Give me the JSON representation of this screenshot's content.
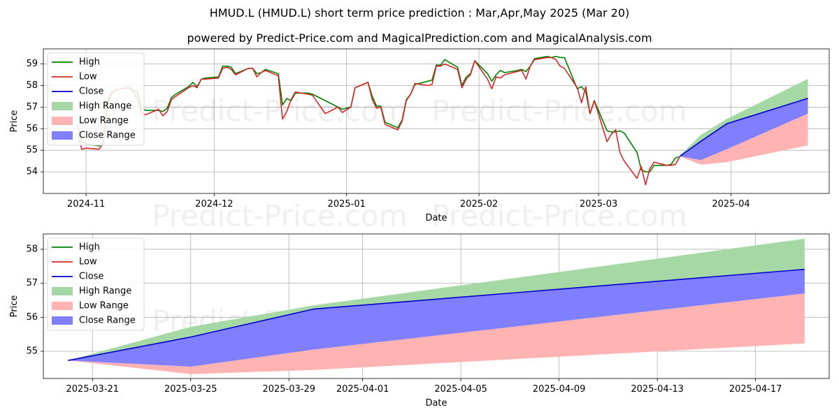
{
  "title": "HMUD.L (HMUD.L) short term price prediction : Mar,Apr,May 2025 (Mar 20)",
  "subtitle": "powered by Predict-Price.com and MagicalPrediction.com and MagicalAnalysis.com",
  "watermark": "Predict-Price.com",
  "colors": {
    "high": "#008000",
    "low": "#d62728",
    "close": "#0000cc",
    "high_range": "#a6d8a6",
    "low_range": "#ffb3b3",
    "close_range": "#7f7fff"
  },
  "legend": [
    "High",
    "Low",
    "Close",
    "High Range",
    "Low Range",
    "Close Range"
  ],
  "chart_data": [
    {
      "type": "line",
      "xlabel": "Date",
      "ylabel": "Price",
      "xlim": [
        "2024-10-22",
        "2025-04-24"
      ],
      "ylim": [
        53.0,
        59.7
      ],
      "yticks": [
        54,
        55,
        56,
        57,
        58,
        59
      ],
      "xticks": [
        {
          "date": "2024-11-01",
          "label": "2024-11"
        },
        {
          "date": "2024-12-01",
          "label": "2024-12"
        },
        {
          "date": "2025-01-01",
          "label": "2025-01"
        },
        {
          "date": "2025-02-01",
          "label": "2025-02"
        },
        {
          "date": "2025-03-01",
          "label": "2025-03"
        },
        {
          "date": "2025-04-01",
          "label": "2025-04"
        }
      ],
      "grid": true,
      "legend_position": "upper-left",
      "series": [
        {
          "name": "High",
          "x": [
            "2024-10-30",
            "2024-10-31",
            "2024-11-01",
            "2024-11-04",
            "2024-11-05",
            "2024-11-06",
            "2024-11-07",
            "2024-11-08",
            "2024-11-11",
            "2024-11-12",
            "2024-11-13",
            "2024-11-14",
            "2024-11-15",
            "2024-11-18",
            "2024-11-19",
            "2024-11-20",
            "2024-11-21",
            "2024-11-22",
            "2024-11-25",
            "2024-11-26",
            "2024-11-27",
            "2024-11-28",
            "2024-11-29",
            "2024-12-02",
            "2024-12-03",
            "2024-12-04",
            "2024-12-05",
            "2024-12-06",
            "2024-12-09",
            "2024-12-10",
            "2024-12-11",
            "2024-12-12",
            "2024-12-13",
            "2024-12-16",
            "2024-12-17",
            "2024-12-18",
            "2024-12-19",
            "2024-12-20",
            "2024-12-23",
            "2024-12-24",
            "2024-12-27",
            "2024-12-30",
            "2024-12-31",
            "2025-01-02",
            "2025-01-03",
            "2025-01-06",
            "2025-01-07",
            "2025-01-08",
            "2025-01-09",
            "2025-01-10",
            "2025-01-13",
            "2025-01-14",
            "2025-01-15",
            "2025-01-16",
            "2025-01-17",
            "2025-01-20",
            "2025-01-21",
            "2025-01-22",
            "2025-01-23",
            "2025-01-24",
            "2025-01-27",
            "2025-01-28",
            "2025-01-29",
            "2025-01-30",
            "2025-01-31",
            "2025-02-03",
            "2025-02-04",
            "2025-02-05",
            "2025-02-06",
            "2025-02-07",
            "2025-02-10",
            "2025-02-11",
            "2025-02-12",
            "2025-02-13",
            "2025-02-14",
            "2025-02-17",
            "2025-02-18",
            "2025-02-19",
            "2025-02-20",
            "2025-02-21",
            "2025-02-24",
            "2025-02-25",
            "2025-02-26",
            "2025-02-27",
            "2025-02-28",
            "2025-03-03",
            "2025-03-04",
            "2025-03-05",
            "2025-03-06",
            "2025-03-07",
            "2025-03-10",
            "2025-03-11",
            "2025-03-12",
            "2025-03-13",
            "2025-03-14",
            "2025-03-17",
            "2025-03-18",
            "2025-03-19",
            "2025-03-20"
          ],
          "values": [
            56.2,
            55.4,
            55.3,
            55.2,
            55.3,
            57.1,
            57.7,
            57.8,
            57.9,
            57.8,
            57.7,
            56.95,
            56.85,
            56.85,
            56.8,
            56.95,
            57.45,
            57.6,
            57.95,
            58.15,
            57.95,
            58.3,
            58.35,
            58.4,
            58.9,
            58.9,
            58.85,
            58.55,
            58.8,
            58.8,
            58.55,
            58.6,
            58.75,
            58.55,
            57.1,
            57.4,
            57.3,
            57.65,
            57.65,
            57.6,
            57.3,
            57.0,
            56.9,
            57.0,
            57.9,
            58.15,
            57.5,
            57.05,
            57.05,
            56.3,
            56.05,
            56.4,
            57.35,
            57.6,
            58.05,
            58.2,
            58.25,
            58.95,
            58.95,
            59.2,
            58.85,
            58.0,
            58.4,
            58.55,
            59.15,
            58.55,
            58.2,
            58.5,
            58.7,
            58.6,
            58.7,
            58.75,
            58.65,
            58.9,
            59.25,
            59.35,
            59.3,
            59.35,
            59.3,
            59.3,
            57.85,
            57.95,
            57.7,
            56.7,
            57.3,
            55.9,
            55.85,
            55.85,
            55.9,
            55.8,
            54.9,
            54.1,
            54.0,
            54.0,
            54.3,
            54.3,
            54.35,
            54.65,
            54.7
          ]
        },
        {
          "name": "Low",
          "x": [
            "2024-10-30",
            "2024-10-31",
            "2024-11-01",
            "2024-11-04",
            "2024-11-05",
            "2024-11-06",
            "2024-11-07",
            "2024-11-08",
            "2024-11-11",
            "2024-11-12",
            "2024-11-13",
            "2024-11-14",
            "2024-11-15",
            "2024-11-18",
            "2024-11-19",
            "2024-11-20",
            "2024-11-21",
            "2024-11-22",
            "2024-11-25",
            "2024-11-26",
            "2024-11-27",
            "2024-11-28",
            "2024-11-29",
            "2024-12-02",
            "2024-12-03",
            "2024-12-04",
            "2024-12-05",
            "2024-12-06",
            "2024-12-09",
            "2024-12-10",
            "2024-12-11",
            "2024-12-12",
            "2024-12-13",
            "2024-12-16",
            "2024-12-17",
            "2024-12-18",
            "2024-12-19",
            "2024-12-20",
            "2024-12-23",
            "2024-12-24",
            "2024-12-27",
            "2024-12-30",
            "2024-12-31",
            "2025-01-02",
            "2025-01-03",
            "2025-01-06",
            "2025-01-07",
            "2025-01-08",
            "2025-01-09",
            "2025-01-10",
            "2025-01-13",
            "2025-01-14",
            "2025-01-15",
            "2025-01-16",
            "2025-01-17",
            "2025-01-20",
            "2025-01-21",
            "2025-01-22",
            "2025-01-23",
            "2025-01-24",
            "2025-01-27",
            "2025-01-28",
            "2025-01-29",
            "2025-01-30",
            "2025-01-31",
            "2025-02-03",
            "2025-02-04",
            "2025-02-05",
            "2025-02-06",
            "2025-02-07",
            "2025-02-10",
            "2025-02-11",
            "2025-02-12",
            "2025-02-13",
            "2025-02-14",
            "2025-02-17",
            "2025-02-18",
            "2025-02-19",
            "2025-02-20",
            "2025-02-21",
            "2025-02-24",
            "2025-02-25",
            "2025-02-26",
            "2025-02-27",
            "2025-02-28",
            "2025-03-03",
            "2025-03-04",
            "2025-03-05",
            "2025-03-06",
            "2025-03-07",
            "2025-03-10",
            "2025-03-11",
            "2025-03-12",
            "2025-03-13",
            "2025-03-14",
            "2025-03-17",
            "2025-03-18",
            "2025-03-19",
            "2025-03-20"
          ],
          "values": [
            55.8,
            55.05,
            55.1,
            55.05,
            55.3,
            57.3,
            57.65,
            57.8,
            57.9,
            57.7,
            57.4,
            56.7,
            56.65,
            56.9,
            56.6,
            56.8,
            57.35,
            57.5,
            57.9,
            58.0,
            57.9,
            58.3,
            58.3,
            58.35,
            58.8,
            58.85,
            58.75,
            58.5,
            58.8,
            58.8,
            58.4,
            58.6,
            58.7,
            58.45,
            56.45,
            56.8,
            57.35,
            57.7,
            57.6,
            57.55,
            56.7,
            57.0,
            56.75,
            57.0,
            57.9,
            58.15,
            57.35,
            56.95,
            57.0,
            56.2,
            55.95,
            56.35,
            57.3,
            57.6,
            58.1,
            58.0,
            58.05,
            58.9,
            58.9,
            59.0,
            58.75,
            57.9,
            58.3,
            58.5,
            59.15,
            58.3,
            57.85,
            58.4,
            58.35,
            58.5,
            58.65,
            58.7,
            58.3,
            58.9,
            59.2,
            59.3,
            59.3,
            59.2,
            58.9,
            58.8,
            57.9,
            57.2,
            57.95,
            56.7,
            57.3,
            55.4,
            55.75,
            55.95,
            54.9,
            54.5,
            53.7,
            54.25,
            53.4,
            54.15,
            54.45,
            54.3,
            54.3,
            54.35,
            54.7
          ]
        },
        {
          "name": "Close",
          "x": [
            "2025-03-20",
            "2025-03-25",
            "2025-03-31",
            "2025-04-19"
          ],
          "values": [
            54.72,
            55.42,
            56.23,
            57.41
          ]
        }
      ],
      "ranges": [
        {
          "name": "High Range",
          "x": [
            "2025-03-20",
            "2025-03-25",
            "2025-03-31",
            "2025-04-19"
          ],
          "upper": [
            54.75,
            55.72,
            56.45,
            58.31
          ],
          "lower": [
            54.72,
            55.42,
            56.23,
            57.41
          ]
        },
        {
          "name": "Low Range",
          "x": [
            "2025-03-20",
            "2025-03-25",
            "2025-03-31",
            "2025-04-19"
          ],
          "upper": [
            54.72,
            54.55,
            55.05,
            56.7
          ],
          "lower": [
            54.72,
            54.33,
            54.45,
            55.23
          ]
        },
        {
          "name": "Close Range",
          "x": [
            "2025-03-20",
            "2025-03-25",
            "2025-03-31",
            "2025-04-19"
          ],
          "upper": [
            54.72,
            55.42,
            56.23,
            57.41
          ],
          "lower": [
            54.72,
            54.55,
            55.05,
            56.7
          ]
        }
      ]
    },
    {
      "type": "line",
      "xlabel": "Date",
      "ylabel": "Price",
      "xlim": [
        "2025-03-19",
        "2025-04-20"
      ],
      "ylim": [
        54.2,
        58.45
      ],
      "yticks": [
        55,
        56,
        57,
        58
      ],
      "xticks": [
        {
          "date": "2025-03-21",
          "label": "2025-03-21"
        },
        {
          "date": "2025-03-25",
          "label": "2025-03-25"
        },
        {
          "date": "2025-03-29",
          "label": "2025-03-29"
        },
        {
          "date": "2025-04-01",
          "label": "2025-04-01"
        },
        {
          "date": "2025-04-05",
          "label": "2025-04-05"
        },
        {
          "date": "2025-04-09",
          "label": "2025-04-09"
        },
        {
          "date": "2025-04-13",
          "label": "2025-04-13"
        },
        {
          "date": "2025-04-17",
          "label": "2025-04-17"
        }
      ],
      "grid": true,
      "legend_position": "upper-left",
      "series": [
        {
          "name": "Close",
          "x": [
            "2025-03-20",
            "2025-03-25",
            "2025-03-30",
            "2025-04-19"
          ],
          "values": [
            54.73,
            55.42,
            56.24,
            57.41
          ]
        }
      ],
      "ranges": [
        {
          "name": "High Range",
          "x": [
            "2025-03-20",
            "2025-03-25",
            "2025-03-30",
            "2025-04-19"
          ],
          "upper": [
            54.73,
            55.72,
            56.35,
            58.31
          ],
          "lower": [
            54.73,
            55.42,
            56.24,
            57.41
          ]
        },
        {
          "name": "Low Range",
          "x": [
            "2025-03-20",
            "2025-03-25",
            "2025-03-30",
            "2025-04-19"
          ],
          "upper": [
            54.73,
            54.55,
            55.05,
            56.7
          ],
          "lower": [
            54.73,
            54.33,
            54.45,
            55.23
          ]
        },
        {
          "name": "Close Range",
          "x": [
            "2025-03-20",
            "2025-03-25",
            "2025-03-30",
            "2025-04-19"
          ],
          "upper": [
            54.73,
            55.42,
            56.24,
            57.41
          ],
          "lower": [
            54.73,
            54.55,
            55.05,
            56.7
          ]
        }
      ]
    }
  ]
}
